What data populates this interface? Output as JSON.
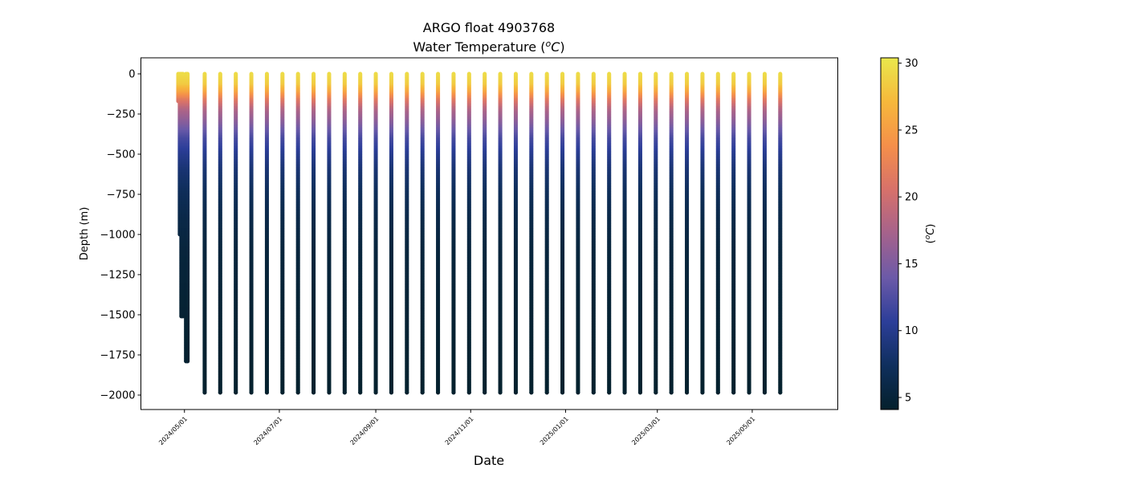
{
  "chart_data": {
    "type": "scatter",
    "title": "ARGO float 4903768",
    "subtitle_prefix": "Water Temperature (",
    "subtitle_unit_base": "o",
    "subtitle_unit_letter": "C",
    "subtitle_suffix": ")",
    "xlabel": "Date",
    "ylabel": "Depth (m)",
    "colorbar_label_prefix": "(",
    "colorbar_label_sup": "o",
    "colorbar_label_letter": "C",
    "colorbar_label_suffix": ")",
    "colormap": "thermal",
    "colormap_stops": [
      "#04202c",
      "#0f2f5d",
      "#2c3e99",
      "#6c5aa8",
      "#a5628c",
      "#d7716a",
      "#f58f4a",
      "#f6b83b",
      "#eae84c"
    ],
    "grid": false,
    "legend": "none",
    "xlim": [
      "2024-04-03",
      "2025-06-25"
    ],
    "ylim": [
      -2090,
      100
    ],
    "clim": [
      4.1,
      30.4
    ],
    "x_ticks": [
      "2024/05/01",
      "2024/07/01",
      "2024/09/01",
      "2024/11/01",
      "2025/01/01",
      "2025/03/01",
      "2025/05/01"
    ],
    "x_tick_dates": [
      "2024-05-01",
      "2024-07-01",
      "2024-09-01",
      "2024-11-01",
      "2025-01-01",
      "2025-03-01",
      "2025-05-01"
    ],
    "y_ticks": [
      0,
      -250,
      -500,
      -750,
      -1000,
      -1250,
      -1500,
      -1750,
      -2000
    ],
    "y_tick_labels": [
      "0",
      "−250",
      "−500",
      "−750",
      "−1000",
      "−1250",
      "−1500",
      "−1750",
      "−2000"
    ],
    "colorbar_ticks": [
      5,
      10,
      15,
      20,
      25,
      30
    ],
    "temperature_profile": {
      "depth": [
        0,
        -60,
        -110,
        -160,
        -220,
        -300,
        -400,
        -500,
        -600,
        -750,
        -900,
        -1100,
        -1400,
        -1700,
        -2000
      ],
      "temp": [
        29.5,
        28.5,
        25.5,
        21.5,
        18.0,
        15.5,
        12.0,
        10.0,
        8.5,
        7.0,
        6.0,
        5.2,
        4.7,
        4.4,
        4.2
      ]
    },
    "initial_profiles": [
      {
        "date": "2024-04-27",
        "max_depth": -170
      },
      {
        "date": "2024-04-28",
        "max_depth": -1000
      },
      {
        "date": "2024-04-29",
        "max_depth": -1510
      },
      {
        "date": "2024-04-30",
        "max_depth": -1510
      },
      {
        "date": "2024-05-02",
        "max_depth": -1790
      },
      {
        "date": "2024-05-03",
        "max_depth": -1790
      }
    ],
    "profile_dates": [
      "2024-05-14",
      "2024-05-24",
      "2024-06-03",
      "2024-06-13",
      "2024-06-23",
      "2024-07-03",
      "2024-07-13",
      "2024-07-23",
      "2024-08-02",
      "2024-08-12",
      "2024-08-22",
      "2024-09-01",
      "2024-09-11",
      "2024-09-21",
      "2024-10-01",
      "2024-10-11",
      "2024-10-21",
      "2024-10-31",
      "2024-11-10",
      "2024-11-20",
      "2024-11-30",
      "2024-12-10",
      "2024-12-20",
      "2024-12-30",
      "2025-01-09",
      "2025-01-19",
      "2025-01-29",
      "2025-02-08",
      "2025-02-18",
      "2025-02-28",
      "2025-03-10",
      "2025-03-20",
      "2025-03-30",
      "2025-04-09",
      "2025-04-19",
      "2025-04-29",
      "2025-05-09",
      "2025-05-19"
    ],
    "profile_max_depth": -1985
  }
}
